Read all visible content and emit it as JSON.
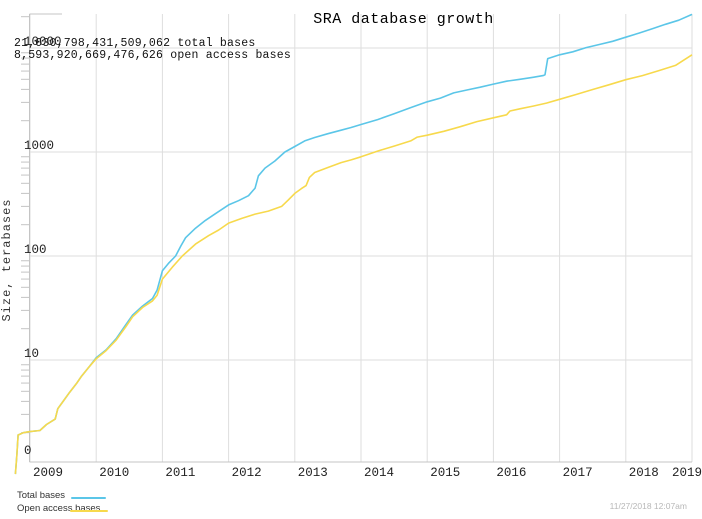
{
  "annotations": {
    "total_bases_line": "21,030,798,431,509,062 total bases",
    "open_access_line": "8,593,920,669,476,626 open access bases"
  },
  "footer": {
    "timestamp": "11/27/2018 12:07am"
  },
  "colors": {
    "total_series": "#5bc6e8",
    "open_series": "#f7d94c",
    "gridline": "#dedede",
    "frame": "#c4c4c4",
    "tick_text": "#222222",
    "timestamp_text": "#b8b8b8"
  },
  "chart_data": {
    "type": "line",
    "title": "SRA database growth",
    "xlabel": "",
    "ylabel": "Size, terabases",
    "y_scale": "log",
    "grid": true,
    "legend_position": "bottom-left",
    "xlim": [
      2008.75,
      2019.0
    ],
    "ylim_terabases": [
      1,
      25000
    ],
    "x_ticks": [
      "2009",
      "2010",
      "2011",
      "2012",
      "2013",
      "2014",
      "2015",
      "2016",
      "2017",
      "2018",
      "2019"
    ],
    "y_ticks": [
      {
        "label": "10000",
        "value": 10000
      },
      {
        "label": "1000",
        "value": 1000
      },
      {
        "label": "100",
        "value": 100
      },
      {
        "label": "10",
        "value": 10
      },
      {
        "label": "0",
        "value": null
      }
    ],
    "series": [
      {
        "name": "Total bases",
        "color": "#5bc6e8",
        "final_value_bases": "21,030,798,431,509,062",
        "points": [
          [
            2008.78,
            0.8
          ],
          [
            2008.8,
            1.2
          ],
          [
            2008.82,
            1.9
          ],
          [
            2008.9,
            2.0
          ],
          [
            2009.0,
            2.05
          ],
          [
            2009.15,
            2.1
          ],
          [
            2009.25,
            2.4
          ],
          [
            2009.38,
            2.7
          ],
          [
            2009.42,
            3.4
          ],
          [
            2009.5,
            4.0
          ],
          [
            2009.6,
            4.9
          ],
          [
            2009.7,
            5.9
          ],
          [
            2009.78,
            7.0
          ],
          [
            2009.9,
            8.7
          ],
          [
            2010.0,
            10.5
          ],
          [
            2010.15,
            12.5
          ],
          [
            2010.3,
            16
          ],
          [
            2010.45,
            22
          ],
          [
            2010.55,
            27
          ],
          [
            2010.7,
            33
          ],
          [
            2010.85,
            39
          ],
          [
            2010.92,
            47
          ],
          [
            2011.0,
            72
          ],
          [
            2011.1,
            86
          ],
          [
            2011.2,
            100
          ],
          [
            2011.28,
            125
          ],
          [
            2011.35,
            150
          ],
          [
            2011.5,
            185
          ],
          [
            2011.65,
            220
          ],
          [
            2011.8,
            255
          ],
          [
            2012.0,
            310
          ],
          [
            2012.15,
            340
          ],
          [
            2012.3,
            380
          ],
          [
            2012.4,
            450
          ],
          [
            2012.45,
            590
          ],
          [
            2012.55,
            700
          ],
          [
            2012.7,
            820
          ],
          [
            2012.85,
            1000
          ],
          [
            2013.0,
            1130
          ],
          [
            2013.15,
            1280
          ],
          [
            2013.3,
            1380
          ],
          [
            2013.5,
            1500
          ],
          [
            2013.7,
            1620
          ],
          [
            2013.85,
            1720
          ],
          [
            2014.0,
            1840
          ],
          [
            2014.25,
            2050
          ],
          [
            2014.5,
            2330
          ],
          [
            2014.75,
            2670
          ],
          [
            2015.0,
            3040
          ],
          [
            2015.2,
            3300
          ],
          [
            2015.4,
            3700
          ],
          [
            2015.6,
            3950
          ],
          [
            2015.8,
            4200
          ],
          [
            2016.0,
            4500
          ],
          [
            2016.2,
            4800
          ],
          [
            2016.4,
            5000
          ],
          [
            2016.6,
            5230
          ],
          [
            2016.75,
            5430
          ],
          [
            2016.78,
            5520
          ],
          [
            2016.82,
            7900
          ],
          [
            2017.0,
            8600
          ],
          [
            2017.2,
            9200
          ],
          [
            2017.4,
            10100
          ],
          [
            2017.6,
            10800
          ],
          [
            2017.8,
            11600
          ],
          [
            2018.0,
            12700
          ],
          [
            2018.2,
            13900
          ],
          [
            2018.4,
            15300
          ],
          [
            2018.6,
            16900
          ],
          [
            2018.8,
            18500
          ],
          [
            2019.0,
            21030
          ]
        ]
      },
      {
        "name": "Open access bases",
        "color": "#f7d94c",
        "final_value_bases": "8,593,920,669,476,626",
        "points": [
          [
            2008.78,
            0.8
          ],
          [
            2008.8,
            1.2
          ],
          [
            2008.82,
            1.9
          ],
          [
            2008.9,
            2.0
          ],
          [
            2009.0,
            2.05
          ],
          [
            2009.15,
            2.1
          ],
          [
            2009.25,
            2.4
          ],
          [
            2009.38,
            2.7
          ],
          [
            2009.42,
            3.4
          ],
          [
            2009.5,
            4.0
          ],
          [
            2009.6,
            4.9
          ],
          [
            2009.7,
            5.9
          ],
          [
            2009.78,
            7.0
          ],
          [
            2009.9,
            8.7
          ],
          [
            2010.0,
            10.3
          ],
          [
            2010.15,
            12.3
          ],
          [
            2010.3,
            15.5
          ],
          [
            2010.45,
            21
          ],
          [
            2010.55,
            26
          ],
          [
            2010.7,
            32
          ],
          [
            2010.85,
            37
          ],
          [
            2010.92,
            42
          ],
          [
            2011.0,
            60
          ],
          [
            2011.15,
            78
          ],
          [
            2011.3,
            100
          ],
          [
            2011.5,
            130
          ],
          [
            2011.7,
            157
          ],
          [
            2011.85,
            178
          ],
          [
            2012.0,
            207
          ],
          [
            2012.2,
            230
          ],
          [
            2012.4,
            253
          ],
          [
            2012.6,
            270
          ],
          [
            2012.8,
            300
          ],
          [
            2012.9,
            345
          ],
          [
            2013.0,
            400
          ],
          [
            2013.1,
            445
          ],
          [
            2013.17,
            475
          ],
          [
            2013.22,
            570
          ],
          [
            2013.3,
            635
          ],
          [
            2013.5,
            710
          ],
          [
            2013.7,
            790
          ],
          [
            2013.85,
            840
          ],
          [
            2014.0,
            900
          ],
          [
            2014.25,
            1020
          ],
          [
            2014.5,
            1140
          ],
          [
            2014.75,
            1280
          ],
          [
            2014.85,
            1390
          ],
          [
            2015.0,
            1450
          ],
          [
            2015.25,
            1580
          ],
          [
            2015.5,
            1750
          ],
          [
            2015.75,
            1960
          ],
          [
            2016.0,
            2130
          ],
          [
            2016.2,
            2280
          ],
          [
            2016.25,
            2480
          ],
          [
            2016.4,
            2600
          ],
          [
            2016.6,
            2760
          ],
          [
            2016.8,
            2950
          ],
          [
            2017.0,
            3210
          ],
          [
            2017.25,
            3570
          ],
          [
            2017.5,
            3990
          ],
          [
            2017.75,
            4440
          ],
          [
            2018.0,
            4960
          ],
          [
            2018.25,
            5430
          ],
          [
            2018.5,
            6060
          ],
          [
            2018.75,
            6800
          ],
          [
            2019.0,
            8594
          ]
        ]
      }
    ]
  }
}
